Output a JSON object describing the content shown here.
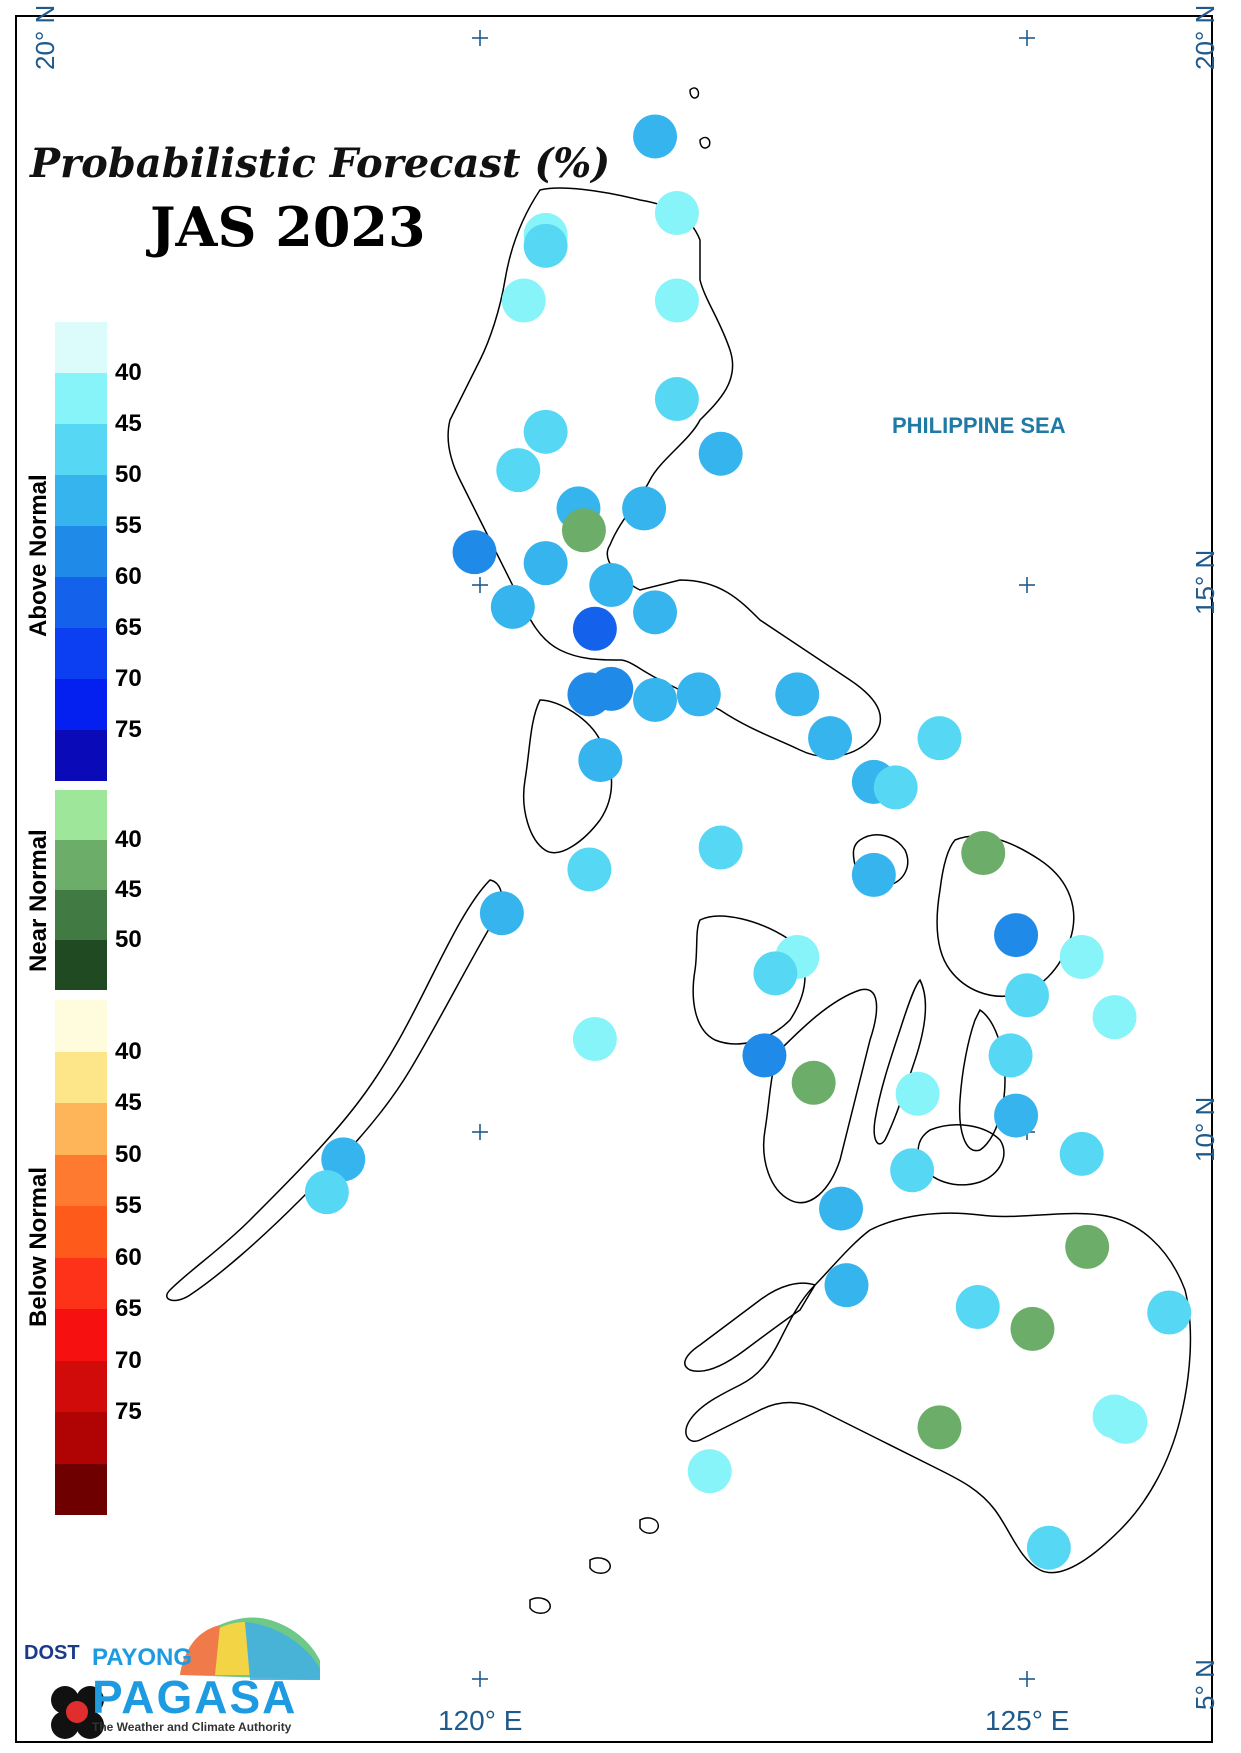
{
  "title": "Probabilistic Forecast (%)",
  "period": "JAS 2023",
  "sea_label": "PHILIPPINE SEA",
  "grid_labels": {
    "lat_20_left": "20° N",
    "lat_20_right": "20° N",
    "lat_15_right": "15° N",
    "lat_10_right": "10° N",
    "lat_5_right": "5° N",
    "lon_120": "120° E",
    "lon_125": "125° E"
  },
  "legend": {
    "above": {
      "label": "Above Normal",
      "colors": [
        "#dcfbfb",
        "#86f4f8",
        "#56d8f4",
        "#35b4ee",
        "#1f8ae8",
        "#1462ec",
        "#0c3ef2",
        "#0420f0",
        "#0a0ab8"
      ],
      "ticks": [
        "40",
        "45",
        "50",
        "55",
        "60",
        "65",
        "70",
        "75"
      ]
    },
    "near": {
      "label": "Near Normal",
      "colors": [
        "#9de69a",
        "#6cae69",
        "#427a44",
        "#1f4a22"
      ],
      "ticks": [
        "40",
        "45",
        "50"
      ]
    },
    "below": {
      "label": "Below Normal",
      "colors": [
        "#fefcdd",
        "#fde68a",
        "#feb55a",
        "#fe7a30",
        "#fe5a1c",
        "#fe3218",
        "#f71010",
        "#d10a0a",
        "#b00404",
        "#6e0000"
      ],
      "ticks": [
        "40",
        "45",
        "50",
        "55",
        "60",
        "65",
        "70",
        "75"
      ]
    }
  },
  "logo": {
    "agency": "DOST",
    "brand_top": "PAYONG",
    "brand": "PAGASA",
    "tagline": "The Weather and Climate Authority"
  },
  "stations": [
    {
      "lon": 121.6,
      "lat": 19.1,
      "cat": "above",
      "pct": 50
    },
    {
      "lon": 121.8,
      "lat": 18.4,
      "cat": "above",
      "pct": 40
    },
    {
      "lon": 120.6,
      "lat": 18.2,
      "cat": "above",
      "pct": 40
    },
    {
      "lon": 120.6,
      "lat": 18.1,
      "cat": "above",
      "pct": 45
    },
    {
      "lon": 120.4,
      "lat": 17.6,
      "cat": "above",
      "pct": 40
    },
    {
      "lon": 121.8,
      "lat": 17.6,
      "cat": "above",
      "pct": 40
    },
    {
      "lon": 121.8,
      "lat": 16.7,
      "cat": "above",
      "pct": 45
    },
    {
      "lon": 120.6,
      "lat": 16.4,
      "cat": "above",
      "pct": 45
    },
    {
      "lon": 122.2,
      "lat": 16.2,
      "cat": "above",
      "pct": 50
    },
    {
      "lon": 120.35,
      "lat": 16.05,
      "cat": "above",
      "pct": 45
    },
    {
      "lon": 120.9,
      "lat": 15.7,
      "cat": "above",
      "pct": 50
    },
    {
      "lon": 121.5,
      "lat": 15.7,
      "cat": "above",
      "pct": 50
    },
    {
      "lon": 120.95,
      "lat": 15.5,
      "cat": "near",
      "pct": 40
    },
    {
      "lon": 119.95,
      "lat": 15.3,
      "cat": "above",
      "pct": 55
    },
    {
      "lon": 120.6,
      "lat": 15.2,
      "cat": "above",
      "pct": 50
    },
    {
      "lon": 121.2,
      "lat": 15.0,
      "cat": "above",
      "pct": 50
    },
    {
      "lon": 120.3,
      "lat": 14.8,
      "cat": "above",
      "pct": 50
    },
    {
      "lon": 121.6,
      "lat": 14.75,
      "cat": "above",
      "pct": 50
    },
    {
      "lon": 121.05,
      "lat": 14.6,
      "cat": "above",
      "pct": 60
    },
    {
      "lon": 121.0,
      "lat": 14.0,
      "cat": "above",
      "pct": 55
    },
    {
      "lon": 121.2,
      "lat": 14.05,
      "cat": "above",
      "pct": 55
    },
    {
      "lon": 121.6,
      "lat": 13.95,
      "cat": "above",
      "pct": 50
    },
    {
      "lon": 122.0,
      "lat": 14.0,
      "cat": "above",
      "pct": 50
    },
    {
      "lon": 122.9,
      "lat": 14.0,
      "cat": "above",
      "pct": 50
    },
    {
      "lon": 123.2,
      "lat": 13.6,
      "cat": "above",
      "pct": 50
    },
    {
      "lon": 124.2,
      "lat": 13.6,
      "cat": "above",
      "pct": 45
    },
    {
      "lon": 121.1,
      "lat": 13.4,
      "cat": "above",
      "pct": 50
    },
    {
      "lon": 123.6,
      "lat": 13.2,
      "cat": "above",
      "pct": 50
    },
    {
      "lon": 123.8,
      "lat": 13.15,
      "cat": "above",
      "pct": 45
    },
    {
      "lon": 122.2,
      "lat": 12.6,
      "cat": "above",
      "pct": 45
    },
    {
      "lon": 121.0,
      "lat": 12.4,
      "cat": "above",
      "pct": 45
    },
    {
      "lon": 123.6,
      "lat": 12.35,
      "cat": "above",
      "pct": 50
    },
    {
      "lon": 124.6,
      "lat": 12.55,
      "cat": "near",
      "pct": 40
    },
    {
      "lon": 120.2,
      "lat": 12.0,
      "cat": "above",
      "pct": 50
    },
    {
      "lon": 124.9,
      "lat": 11.8,
      "cat": "above",
      "pct": 55
    },
    {
      "lon": 125.5,
      "lat": 11.6,
      "cat": "above",
      "pct": 40
    },
    {
      "lon": 122.9,
      "lat": 11.6,
      "cat": "above",
      "pct": 40
    },
    {
      "lon": 122.7,
      "lat": 11.45,
      "cat": "above",
      "pct": 45
    },
    {
      "lon": 125.0,
      "lat": 11.25,
      "cat": "above",
      "pct": 45
    },
    {
      "lon": 125.8,
      "lat": 11.05,
      "cat": "above",
      "pct": 40
    },
    {
      "lon": 121.05,
      "lat": 10.85,
      "cat": "above",
      "pct": 40
    },
    {
      "lon": 122.6,
      "lat": 10.7,
      "cat": "above",
      "pct": 55
    },
    {
      "lon": 124.85,
      "lat": 10.7,
      "cat": "above",
      "pct": 45
    },
    {
      "lon": 123.05,
      "lat": 10.45,
      "cat": "near",
      "pct": 40
    },
    {
      "lon": 124.0,
      "lat": 10.35,
      "cat": "above",
      "pct": 40
    },
    {
      "lon": 124.9,
      "lat": 10.15,
      "cat": "above",
      "pct": 50
    },
    {
      "lon": 118.75,
      "lat": 9.75,
      "cat": "above",
      "pct": 50
    },
    {
      "lon": 125.5,
      "lat": 9.8,
      "cat": "above",
      "pct": 45
    },
    {
      "lon": 118.6,
      "lat": 9.45,
      "cat": "above",
      "pct": 45
    },
    {
      "lon": 123.95,
      "lat": 9.65,
      "cat": "above",
      "pct": 45
    },
    {
      "lon": 123.3,
      "lat": 9.3,
      "cat": "above",
      "pct": 50
    },
    {
      "lon": 125.55,
      "lat": 8.95,
      "cat": "near",
      "pct": 40
    },
    {
      "lon": 123.35,
      "lat": 8.6,
      "cat": "above",
      "pct": 50
    },
    {
      "lon": 124.55,
      "lat": 8.4,
      "cat": "above",
      "pct": 45
    },
    {
      "lon": 126.3,
      "lat": 8.35,
      "cat": "above",
      "pct": 45
    },
    {
      "lon": 125.05,
      "lat": 8.2,
      "cat": "near",
      "pct": 40
    },
    {
      "lon": 124.2,
      "lat": 7.3,
      "cat": "near",
      "pct": 40
    },
    {
      "lon": 125.8,
      "lat": 7.4,
      "cat": "above",
      "pct": 40
    },
    {
      "lon": 125.9,
      "lat": 7.35,
      "cat": "above",
      "pct": 40
    },
    {
      "lon": 122.1,
      "lat": 6.9,
      "cat": "above",
      "pct": 40
    },
    {
      "lon": 125.2,
      "lat": 6.2,
      "cat": "above",
      "pct": 45
    }
  ]
}
